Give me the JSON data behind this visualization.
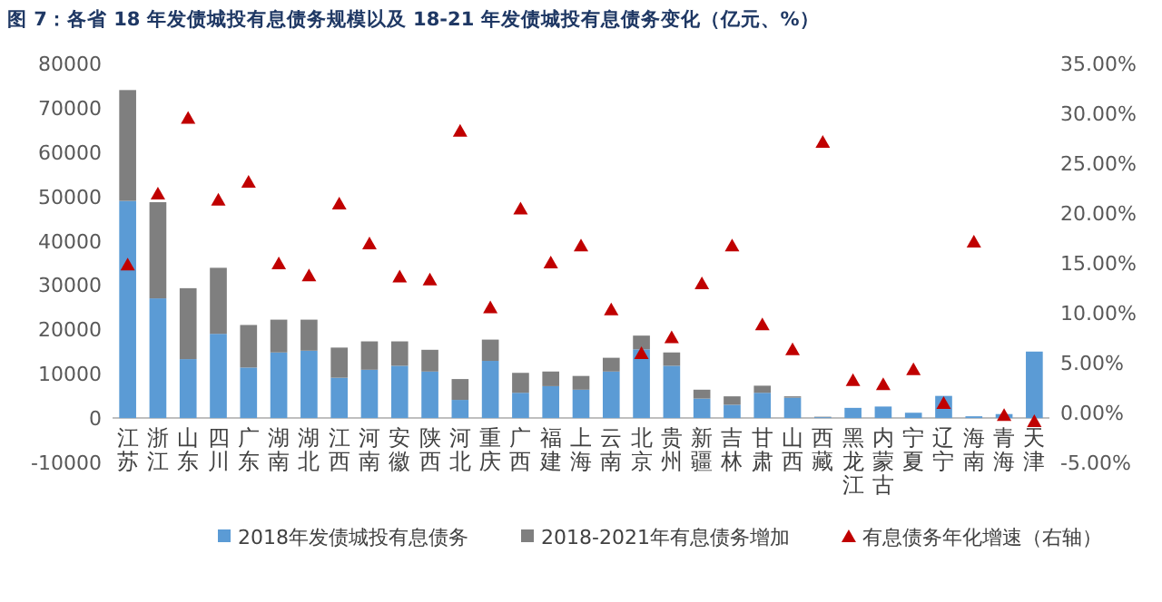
{
  "chart_data": {
    "type": "bar",
    "title": "图 7：各省 18 年发债城投有息债务规模以及 18-21 年发债城投有息债务变化（亿元、%）",
    "categories": [
      "江苏",
      "浙江",
      "山东",
      "四川",
      "广东",
      "湖南",
      "湖北",
      "江西",
      "河南",
      "安徽",
      "陕西",
      "河北",
      "重庆",
      "广西",
      "福建",
      "上海",
      "云南",
      "北京",
      "贵州",
      "新疆",
      "吉林",
      "甘肃",
      "山西",
      "西藏",
      "黑龙江",
      "内蒙古",
      "宁夏",
      "辽宁",
      "海南",
      "青海",
      "天津"
    ],
    "stacked": true,
    "legend": "bottom",
    "ylim": [
      -10000,
      80000
    ],
    "yticks": [
      -10000,
      0,
      10000,
      20000,
      30000,
      40000,
      50000,
      60000,
      70000,
      80000
    ],
    "y2lim": [
      -5,
      35
    ],
    "y2ticks": [
      {
        "value": -5,
        "label": "-5.00%"
      },
      {
        "value": 0,
        "label": "0.00%"
      },
      {
        "value": 5,
        "label": "5.00%"
      },
      {
        "value": 10,
        "label": "10.00%"
      },
      {
        "value": 15,
        "label": "15.00%"
      },
      {
        "value": 20,
        "label": "20.00%"
      },
      {
        "value": 25,
        "label": "25.00%"
      },
      {
        "value": 30,
        "label": "30.00%"
      },
      {
        "value": 35,
        "label": "35.00%"
      }
    ],
    "series": [
      {
        "name": "2018年发债城投有息债务",
        "color": "#5b9bd5",
        "values": [
          49000,
          27000,
          13300,
          19000,
          11400,
          14800,
          15200,
          9100,
          10900,
          11800,
          10500,
          4100,
          12900,
          5700,
          7200,
          6400,
          10500,
          15500,
          11800,
          4400,
          3000,
          5700,
          4600,
          200,
          2300,
          2600,
          1200,
          5000,
          400,
          900,
          15000
        ]
      },
      {
        "name": "2018-2021年有息债务增加",
        "color": "#7f7f7f",
        "values": [
          25000,
          21700,
          16000,
          14900,
          9600,
          7400,
          7000,
          6800,
          6400,
          5500,
          4900,
          4700,
          4800,
          4500,
          3300,
          3100,
          3100,
          3100,
          3000,
          2000,
          1900,
          1600,
          300,
          100,
          0,
          0,
          0,
          0,
          0,
          0,
          0
        ]
      },
      {
        "name": "有息债务年化增速（右轴）",
        "type": "scatter",
        "axis": "y2",
        "marker": "triangle",
        "color": "#c00000",
        "values": [
          14.8,
          21.9,
          29.5,
          21.3,
          23.1,
          14.9,
          13.7,
          20.9,
          16.9,
          13.6,
          13.3,
          28.2,
          10.5,
          20.4,
          15.0,
          16.7,
          10.3,
          5.9,
          7.5,
          12.9,
          16.7,
          8.8,
          6.3,
          27.1,
          3.2,
          2.8,
          4.3,
          0.9,
          17.1,
          -0.3,
          -0.9
        ]
      }
    ]
  }
}
